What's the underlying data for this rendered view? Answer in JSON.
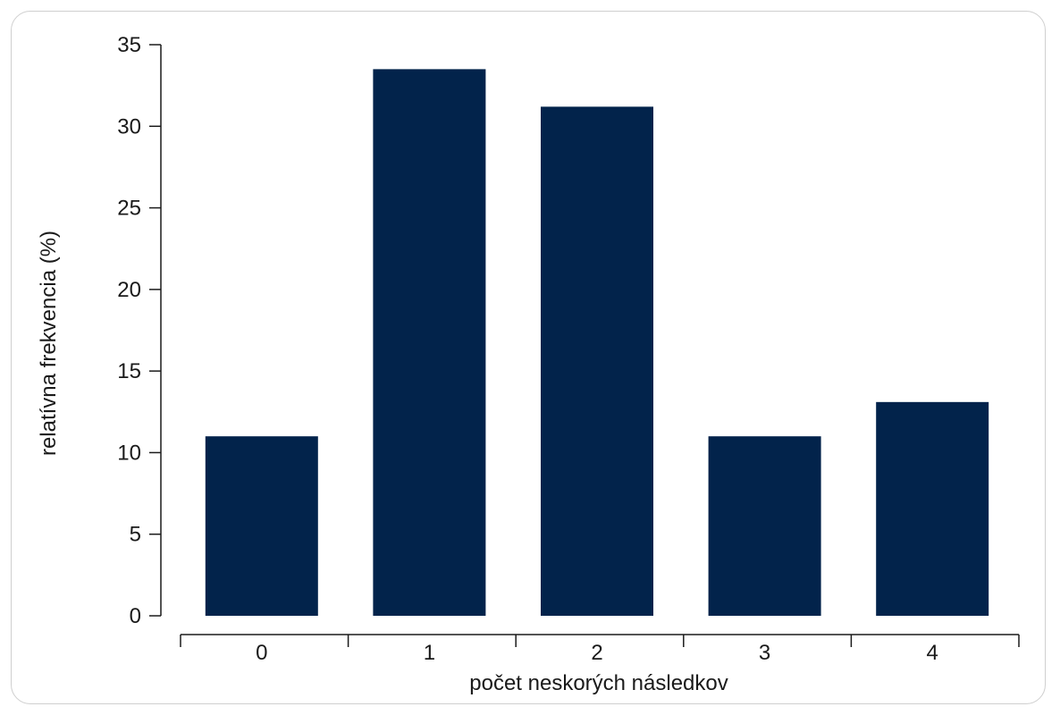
{
  "chart_data": {
    "type": "bar",
    "title": "",
    "xlabel": "počet neskorých následkov",
    "ylabel": "relatívna frekvencia (%)",
    "categories": [
      "0",
      "1",
      "2",
      "3",
      "4"
    ],
    "values": [
      11,
      33.5,
      31.2,
      11,
      13.1
    ],
    "ylim": [
      0,
      35
    ],
    "yticks": [
      0,
      5,
      10,
      15,
      20,
      25,
      30,
      35
    ],
    "grid": false,
    "legend": "none",
    "bar_color": "#02234b",
    "axis_color": "#1a1a1a"
  }
}
